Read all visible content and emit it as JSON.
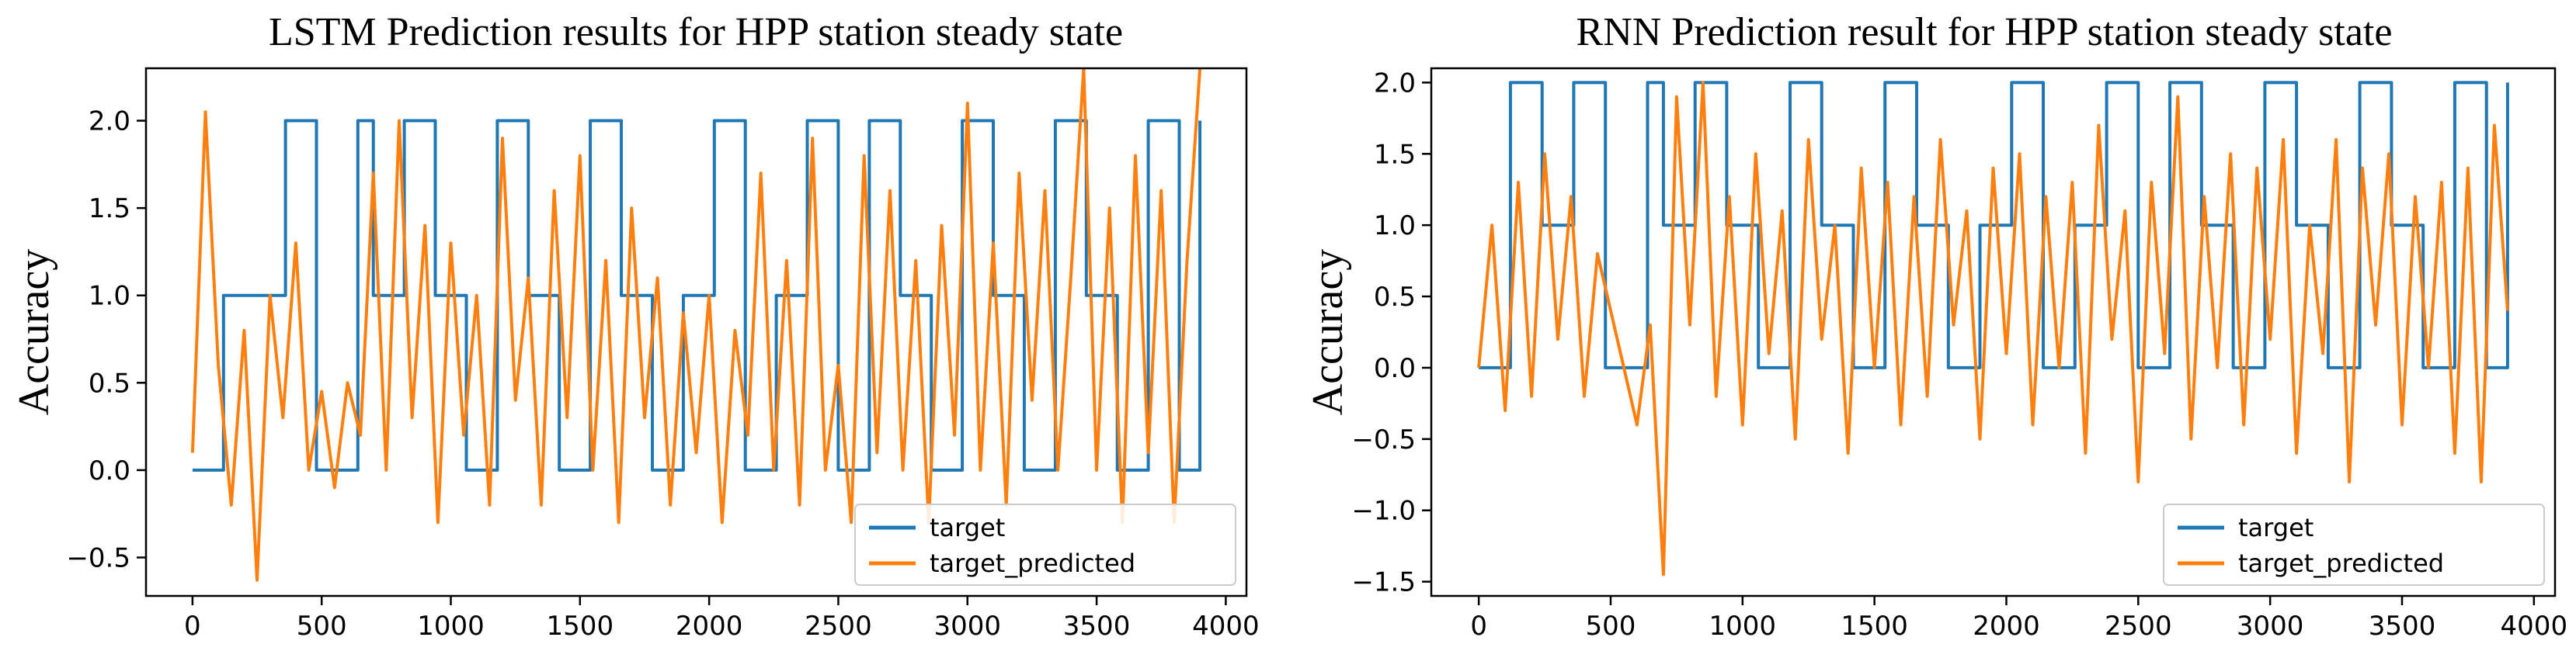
{
  "chart_data": [
    {
      "type": "line",
      "title": "LSTM Prediction results for HPP station steady state",
      "xlabel": "",
      "ylabel": "Accuracy",
      "xlim": [
        -180,
        4080
      ],
      "ylim": [
        -0.72,
        2.3
      ],
      "xticks": [
        0,
        500,
        1000,
        1500,
        2000,
        2500,
        3000,
        3500,
        4000
      ],
      "yticks": [
        -0.5,
        0.0,
        0.5,
        1.0,
        1.5,
        2.0
      ],
      "ytick_labels": [
        "−0.5",
        "0.0",
        "0.5",
        "1.0",
        "1.5",
        "2.0"
      ],
      "legend_position": "lower-right",
      "series": [
        {
          "name": "target",
          "color": "#1f77b4",
          "x": [
            0,
            120,
            240,
            360,
            480,
            560,
            640,
            700,
            820,
            940,
            1060,
            1180,
            1300,
            1420,
            1540,
            1660,
            1780,
            1900,
            2020,
            2140,
            2260,
            2380,
            2500,
            2620,
            2740,
            2860,
            2980,
            3100,
            3220,
            3340,
            3460,
            3580,
            3700,
            3820,
            3900
          ],
          "y": [
            0,
            1,
            1,
            2,
            0,
            0,
            2,
            1,
            2,
            1,
            0,
            2,
            1,
            0,
            2,
            1,
            0,
            1,
            2,
            0,
            1,
            2,
            0,
            2,
            1,
            0,
            2,
            1,
            0,
            2,
            1,
            0,
            2,
            0,
            2
          ]
        },
        {
          "name": "target_predicted",
          "color": "#ff7f0e",
          "x": [
            0,
            50,
            100,
            150,
            200,
            250,
            300,
            350,
            400,
            450,
            500,
            550,
            600,
            650,
            700,
            750,
            800,
            850,
            900,
            950,
            1000,
            1050,
            1100,
            1150,
            1200,
            1250,
            1300,
            1350,
            1400,
            1450,
            1500,
            1550,
            1600,
            1650,
            1700,
            1750,
            1800,
            1850,
            1900,
            1950,
            2000,
            2050,
            2100,
            2150,
            2200,
            2250,
            2300,
            2350,
            2400,
            2450,
            2500,
            2550,
            2600,
            2650,
            2700,
            2750,
            2800,
            2850,
            2900,
            2950,
            3000,
            3050,
            3100,
            3150,
            3200,
            3250,
            3300,
            3350,
            3400,
            3450,
            3500,
            3550,
            3600,
            3650,
            3700,
            3750,
            3800,
            3850,
            3900
          ],
          "y": [
            0.1,
            2.05,
            0.6,
            -0.2,
            0.8,
            -0.63,
            1.0,
            0.3,
            1.3,
            0.0,
            0.45,
            -0.1,
            0.5,
            0.2,
            1.7,
            0.0,
            2.0,
            0.3,
            1.4,
            -0.3,
            1.3,
            0.2,
            1.0,
            -0.2,
            1.9,
            0.4,
            1.1,
            -0.2,
            1.6,
            0.3,
            1.8,
            0.0,
            1.2,
            -0.3,
            1.5,
            0.3,
            1.1,
            -0.2,
            0.9,
            0.1,
            1.0,
            -0.3,
            0.8,
            0.2,
            1.7,
            0.0,
            1.2,
            -0.2,
            1.9,
            0.0,
            0.6,
            -0.3,
            1.8,
            0.1,
            1.6,
            0.0,
            1.2,
            -0.3,
            1.4,
            0.2,
            2.1,
            0.0,
            1.3,
            -0.2,
            1.7,
            0.4,
            1.6,
            0.0,
            1.1,
            2.3,
            0.0,
            1.5,
            -0.3,
            1.8,
            0.1,
            1.6,
            -0.3,
            1.2,
            2.3
          ]
        }
      ]
    },
    {
      "type": "line",
      "title": "RNN Prediction result for HPP station steady state",
      "xlabel": "",
      "ylabel": "Accuracy",
      "xlim": [
        -180,
        4080
      ],
      "ylim": [
        -1.6,
        2.1
      ],
      "xticks": [
        0,
        500,
        1000,
        1500,
        2000,
        2500,
        3000,
        3500,
        4000
      ],
      "yticks": [
        -1.5,
        -1.0,
        -0.5,
        0.0,
        0.5,
        1.0,
        1.5,
        2.0
      ],
      "ytick_labels": [
        "−1.5",
        "−1.0",
        "−0.5",
        "0.0",
        "0.5",
        "1.0",
        "1.5",
        "2.0"
      ],
      "legend_position": "lower-right",
      "series": [
        {
          "name": "target",
          "color": "#1f77b4",
          "x": [
            0,
            120,
            240,
            360,
            480,
            560,
            640,
            700,
            820,
            940,
            1060,
            1180,
            1300,
            1420,
            1540,
            1660,
            1780,
            1900,
            2020,
            2140,
            2260,
            2380,
            2500,
            2620,
            2740,
            2860,
            2980,
            3100,
            3220,
            3340,
            3460,
            3580,
            3700,
            3820,
            3900
          ],
          "y": [
            0,
            2,
            1,
            2,
            0,
            0,
            2,
            1,
            2,
            1,
            0,
            2,
            1,
            0,
            2,
            1,
            0,
            1,
            2,
            0,
            1,
            2,
            0,
            2,
            1,
            0,
            2,
            1,
            0,
            2,
            1,
            0,
            2,
            0,
            2
          ]
        },
        {
          "name": "target_predicted",
          "color": "#ff7f0e",
          "x": [
            0,
            50,
            100,
            150,
            200,
            250,
            300,
            350,
            400,
            450,
            500,
            550,
            600,
            650,
            700,
            750,
            800,
            850,
            900,
            950,
            1000,
            1050,
            1100,
            1150,
            1200,
            1250,
            1300,
            1350,
            1400,
            1450,
            1500,
            1550,
            1600,
            1650,
            1700,
            1750,
            1800,
            1850,
            1900,
            1950,
            2000,
            2050,
            2100,
            2150,
            2200,
            2250,
            2300,
            2350,
            2400,
            2450,
            2500,
            2550,
            2600,
            2650,
            2700,
            2750,
            2800,
            2850,
            2900,
            2950,
            3000,
            3050,
            3100,
            3150,
            3200,
            3250,
            3300,
            3350,
            3400,
            3450,
            3500,
            3550,
            3600,
            3650,
            3700,
            3750,
            3800,
            3850,
            3900
          ],
          "y": [
            0.0,
            1.0,
            -0.3,
            1.3,
            -0.2,
            1.5,
            0.2,
            1.2,
            -0.2,
            0.8,
            0.4,
            0.0,
            -0.4,
            0.3,
            -1.45,
            1.9,
            0.3,
            2.0,
            -0.2,
            1.2,
            -0.4,
            1.5,
            0.1,
            1.1,
            -0.5,
            1.6,
            0.2,
            1.0,
            -0.6,
            1.4,
            0.0,
            1.3,
            -0.4,
            1.2,
            -0.2,
            1.6,
            0.3,
            1.1,
            -0.5,
            1.4,
            0.1,
            1.5,
            -0.4,
            1.2,
            0.0,
            1.3,
            -0.6,
            1.7,
            0.2,
            1.1,
            -0.8,
            1.3,
            0.1,
            1.9,
            -0.5,
            1.2,
            0.0,
            1.5,
            -0.4,
            1.4,
            0.2,
            1.6,
            -0.6,
            1.0,
            0.1,
            1.6,
            -0.8,
            1.4,
            0.3,
            1.5,
            -0.4,
            1.2,
            0.0,
            1.3,
            -0.6,
            1.4,
            -0.8,
            1.7,
            0.4
          ]
        }
      ]
    }
  ]
}
